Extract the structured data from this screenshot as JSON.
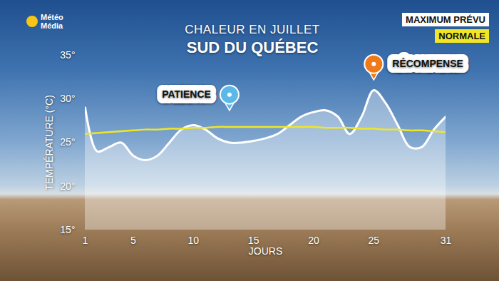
{
  "chart_data": {
    "type": "line",
    "logo": "Météo Média",
    "title": "CHALEUR EN JUILLET",
    "subtitle": "SUD DU QUÉBEC",
    "x_label": "JOURS",
    "y_label": "TEMPÉRATURE (°C)",
    "x": [
      1,
      2,
      3,
      4,
      5,
      6,
      7,
      8,
      9,
      10,
      11,
      12,
      13,
      14,
      15,
      16,
      17,
      18,
      19,
      20,
      21,
      22,
      23,
      24,
      25,
      26,
      27,
      28,
      29,
      30,
      31
    ],
    "series": [
      {
        "name": "MAXIMUM PRÉVU",
        "color": "#ffffff",
        "type": "area",
        "values": [
          29,
          24,
          24.5,
          25,
          23.5,
          23,
          23.5,
          25,
          26.5,
          27,
          26.5,
          25.5,
          25,
          25,
          25.2,
          25.5,
          26,
          27,
          28,
          28.5,
          28.7,
          28,
          26,
          28,
          31,
          29.5,
          27,
          24.5,
          24.5,
          26.5,
          28
        ]
      },
      {
        "name": "NORMALE",
        "color": "#f0e626",
        "type": "line",
        "values": [
          26.0,
          26.1,
          26.2,
          26.3,
          26.4,
          26.5,
          26.5,
          26.6,
          26.6,
          26.7,
          26.7,
          26.8,
          26.8,
          26.8,
          26.8,
          26.8,
          26.8,
          26.8,
          26.8,
          26.8,
          26.7,
          26.7,
          26.7,
          26.6,
          26.6,
          26.5,
          26.5,
          26.4,
          26.4,
          26.3,
          26.2
        ]
      }
    ],
    "xlim": [
      1,
      31
    ],
    "xticks": [
      1,
      5,
      10,
      15,
      20,
      25,
      31
    ],
    "ylim": [
      15,
      35
    ],
    "yticks": [
      {
        "value": 15,
        "label": "15°"
      },
      {
        "value": 20,
        "label": "20°"
      },
      {
        "value": 25,
        "label": "25°"
      },
      {
        "value": 30,
        "label": "30°"
      },
      {
        "value": 35,
        "label": "35°"
      }
    ],
    "grid": false,
    "legend": "top right",
    "annotations": [
      {
        "text": "PATIENCE",
        "x": 13,
        "y": 30.5,
        "color": "#5bb8e8"
      },
      {
        "text": "RÉCOMPENSE",
        "x": 25,
        "y": 34,
        "color": "#f07a1a"
      }
    ]
  }
}
